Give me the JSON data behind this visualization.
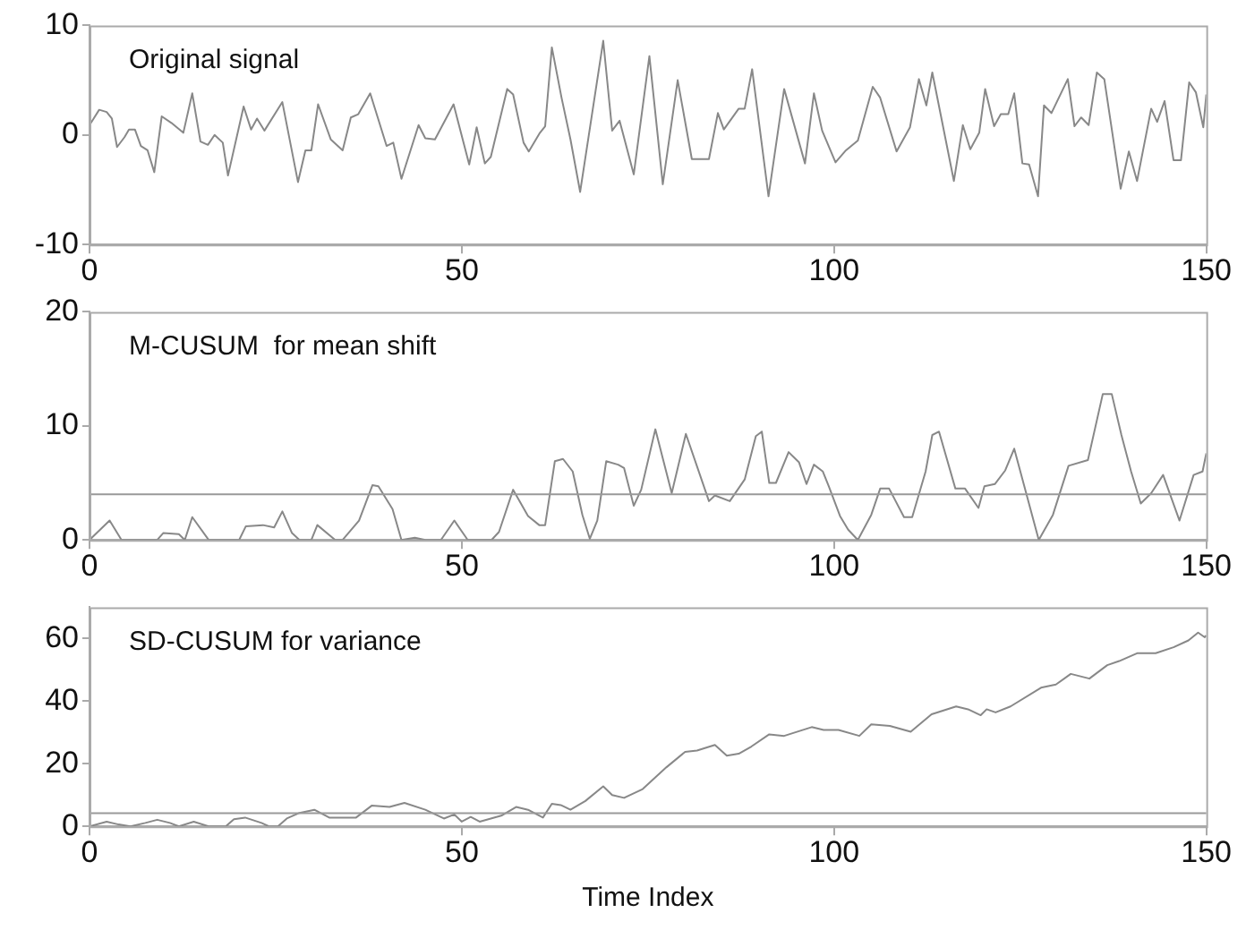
{
  "chart_data": [
    {
      "type": "line",
      "title": "Original signal",
      "xlim": [
        0,
        150
      ],
      "ylim": [
        -10,
        10
      ],
      "xticks": [
        0,
        50,
        100,
        150
      ],
      "yticks": [
        -10,
        0,
        10
      ],
      "grid": false,
      "legend": false,
      "color": "#888888",
      "x": [
        0,
        1.3,
        2.3,
        3,
        3.7,
        4.7,
        5.3,
        6.1,
        6.9,
        7.8,
        8.7,
        9.7,
        11,
        12.6,
        13.8,
        14.9,
        15.9,
        16.8,
        17.9,
        18.6,
        20.7,
        21.7,
        22.5,
        23.5,
        25.9,
        28,
        29,
        29.8,
        30.7,
        32.4,
        34,
        35.1,
        36.1,
        37.7,
        39.9,
        40.8,
        41.9,
        44.2,
        45.1,
        46.4,
        48.9,
        51,
        52,
        53.1,
        53.9,
        56.1,
        56.9,
        58.3,
        59,
        60.5,
        61.2,
        62.1,
        63.4,
        64.6,
        65.9,
        69,
        70.2,
        71.2,
        73.1,
        75.2,
        77,
        79,
        80.9,
        83.2,
        84.4,
        85.2,
        87.2,
        88,
        89,
        91.2,
        93.3,
        96.1,
        97.3,
        98.4,
        100.2,
        101.6,
        103.2,
        105.2,
        106.2,
        108.4,
        110.2,
        111.4,
        112.4,
        113.2,
        116.1,
        117.3,
        118.3,
        119.5,
        120.3,
        121.5,
        122.4,
        123.4,
        124.2,
        125.3,
        126.2,
        127.4,
        128.2,
        129.2,
        131.4,
        132.3,
        133.2,
        134.2,
        135.3,
        136.3,
        138.5,
        139.6,
        140.7,
        142.6,
        143.4,
        144.4,
        145.6,
        146.6,
        147.7,
        148.6,
        149.6,
        150
      ],
      "values": [
        0.9,
        2.3,
        2.1,
        1.5,
        -1.1,
        -0.2,
        0.5,
        0.5,
        -1,
        -1.4,
        -3.4,
        1.7,
        1.1,
        0.2,
        3.8,
        -0.6,
        -0.9,
        0,
        -0.7,
        -3.7,
        2.6,
        0.5,
        1.5,
        0.4,
        3,
        -4.3,
        -1.4,
        -1.4,
        2.8,
        -0.4,
        -1.4,
        1.6,
        1.9,
        3.8,
        -1,
        -0.7,
        -4,
        0.9,
        -0.3,
        -0.4,
        2.8,
        -2.7,
        0.7,
        -2.6,
        -2,
        4.2,
        3.7,
        -0.7,
        -1.5,
        0.2,
        0.8,
        8,
        3.4,
        -0.4,
        -5.2,
        8.6,
        0.4,
        1.3,
        -3.6,
        7.2,
        -4.5,
        5,
        -2.2,
        -2.2,
        2,
        0.5,
        2.4,
        2.4,
        6,
        -5.6,
        4.2,
        -2.6,
        3.8,
        0.4,
        -2.5,
        -1.4,
        -0.5,
        4.4,
        3.4,
        -1.5,
        0.7,
        5.1,
        2.7,
        5.7,
        -4.2,
        0.9,
        -1.3,
        0.2,
        4.2,
        0.8,
        1.9,
        1.9,
        3.8,
        -2.6,
        -2.7,
        -5.6,
        2.7,
        2,
        5.1,
        0.8,
        1.6,
        0.9,
        5.7,
        5.1,
        -4.9,
        -1.5,
        -4.2,
        2.4,
        1.2,
        3.1,
        -2.3,
        -2.3,
        4.8,
        3.9,
        0.7,
        3.7
      ]
    },
    {
      "type": "line",
      "title": "M-CUSUM  for mean shift",
      "xlim": [
        0,
        150
      ],
      "ylim": [
        0,
        20
      ],
      "xticks": [
        0,
        50,
        100,
        150
      ],
      "yticks": [
        0,
        10,
        20
      ],
      "grid": false,
      "legend": false,
      "color": "#888888",
      "ref_lines": [
        {
          "axis": "y",
          "value": 4,
          "color": "#999999"
        }
      ],
      "x": [
        0,
        2.7,
        4.3,
        9.1,
        9.9,
        12,
        12.8,
        13.8,
        16,
        20.1,
        21,
        23.3,
        24.8,
        25.9,
        27.2,
        28.2,
        29.8,
        30.6,
        33,
        34,
        36.2,
        38,
        38.8,
        40.7,
        41.9,
        43.7,
        45.1,
        47.2,
        49,
        50.8,
        54,
        55,
        56.9,
        58.9,
        60.4,
        61.2,
        62.5,
        63.6,
        64.9,
        66.2,
        67.2,
        68.2,
        69.4,
        71,
        71.8,
        73.1,
        74.1,
        76,
        78.2,
        80.1,
        83.2,
        84,
        86,
        88,
        89.5,
        90.3,
        91.3,
        92.2,
        93.9,
        95.3,
        96.3,
        97.3,
        98.5,
        99.3,
        100.8,
        101.9,
        103.2,
        105,
        106.2,
        107.4,
        109.4,
        110.5,
        112.3,
        113.2,
        114.1,
        116.3,
        117.6,
        119.4,
        120.2,
        121.6,
        123,
        124.2,
        127.5,
        129.4,
        131.5,
        134.1,
        136.1,
        137.3,
        138.6,
        139.9,
        141.2,
        142.6,
        144.2,
        146.4,
        148.3,
        149.5,
        150
      ],
      "values": [
        0,
        1.7,
        0,
        0,
        0.6,
        0.5,
        0,
        2,
        0,
        0,
        1.2,
        1.3,
        1.1,
        2.5,
        0.6,
        0,
        0,
        1.3,
        0,
        0,
        1.7,
        4.8,
        4.7,
        2.7,
        0,
        0.2,
        0,
        0,
        1.7,
        0,
        0,
        0.7,
        4.4,
        2.1,
        1.3,
        1.3,
        6.9,
        7.1,
        6,
        2.2,
        0.1,
        1.7,
        6.9,
        6.6,
        6.3,
        3,
        4.4,
        9.7,
        4.1,
        9.3,
        3.4,
        3.9,
        3.4,
        5.3,
        9.1,
        9.5,
        5,
        5,
        7.7,
        6.8,
        4.9,
        6.6,
        6,
        4.7,
        2.1,
        0.9,
        0,
        2.2,
        4.5,
        4.5,
        2,
        2,
        6,
        9.2,
        9.5,
        4.5,
        4.5,
        2.8,
        4.7,
        4.9,
        6.1,
        8,
        0,
        2.2,
        6.5,
        7,
        12.8,
        12.8,
        9.2,
        6,
        3.2,
        4.1,
        5.7,
        1.7,
        5.7,
        6,
        7.6
      ]
    },
    {
      "type": "line",
      "title": "SD-CUSUM for variance",
      "xlabel": "Time Index",
      "xlim": [
        0,
        150
      ],
      "ylim": [
        0,
        70
      ],
      "xticks": [
        0,
        50,
        100,
        150
      ],
      "yticks": [
        0,
        20,
        40,
        60
      ],
      "grid": false,
      "legend": false,
      "color": "#888888",
      "ref_lines": [
        {
          "axis": "y",
          "value": 4.2,
          "color": "#999999"
        }
      ],
      "x": [
        0,
        2.3,
        3.9,
        5.5,
        7.5,
        9.1,
        10.8,
        12,
        14,
        16,
        18.3,
        19.4,
        20.9,
        23.1,
        24.1,
        25.3,
        26.5,
        28.2,
        30.2,
        32.2,
        35.8,
        37.9,
        40.3,
        42.3,
        45.1,
        47.6,
        49,
        50,
        51.2,
        52.4,
        55.3,
        57.3,
        58.9,
        60.9,
        62.1,
        63.3,
        64.6,
        66.6,
        69,
        70.2,
        71.8,
        74.3,
        77.5,
        80,
        81.6,
        84,
        85.6,
        87.2,
        88.9,
        91.3,
        93.3,
        97,
        98.6,
        100.6,
        103.4,
        105,
        107.5,
        110.3,
        113.1,
        116.4,
        118,
        119.7,
        120.5,
        121.7,
        123.7,
        127.8,
        129.8,
        131.8,
        134.3,
        136.7,
        138.3,
        140.7,
        143.2,
        145.6,
        147.6,
        148.9,
        149.8,
        150
      ],
      "values": [
        0,
        1.5,
        0.6,
        0,
        1.1,
        2.1,
        1.1,
        0,
        1.5,
        0,
        0,
        2.3,
        2.8,
        1.1,
        0,
        0,
        2.5,
        4.3,
        5.3,
        2.8,
        2.8,
        6.6,
        6.2,
        7.5,
        5.3,
        2.5,
        3.8,
        1.5,
        3,
        1.5,
        3.4,
        6.2,
        5.3,
        2.8,
        7.2,
        6.8,
        5.3,
        8.1,
        12.8,
        10,
        9.1,
        11.9,
        18.9,
        23.8,
        24.2,
        26,
        22.6,
        23.2,
        25.5,
        29.4,
        28.9,
        31.7,
        30.8,
        30.8,
        28.9,
        32.6,
        32.1,
        30.2,
        35.8,
        38.3,
        37.4,
        35.5,
        37.4,
        36.4,
        38.3,
        44.3,
        45.3,
        48.7,
        47.2,
        51.5,
        52.8,
        55.3,
        55.3,
        57.2,
        59.4,
        61.9,
        60.4,
        61
      ]
    }
  ]
}
